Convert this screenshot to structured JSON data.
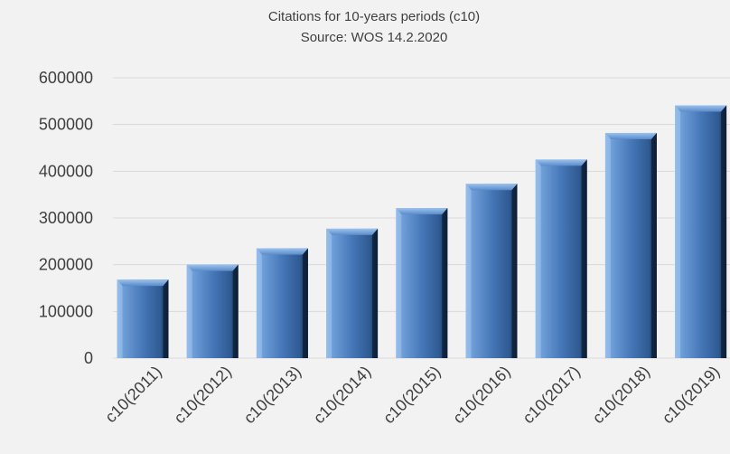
{
  "chart_data": {
    "type": "bar",
    "title": "Citations for 10-years periods (c10)",
    "subtitle": "Source: WOS 14.2.2020",
    "categories": [
      "c10(2011)",
      "c10(2012)",
      "c10(2013)",
      "c10(2014)",
      "c10(2015)",
      "c10(2016)",
      "c10(2017)",
      "c10(2018)",
      "c10(2019)"
    ],
    "values": [
      168000,
      200000,
      235000,
      277000,
      321000,
      373000,
      425000,
      482000,
      541000
    ],
    "ylim": [
      0,
      600000
    ],
    "yticks": [
      "0",
      "100000",
      "200000",
      "300000",
      "400000",
      "500000",
      "600000"
    ],
    "grid": true,
    "bar_color": "#4f81bd"
  }
}
